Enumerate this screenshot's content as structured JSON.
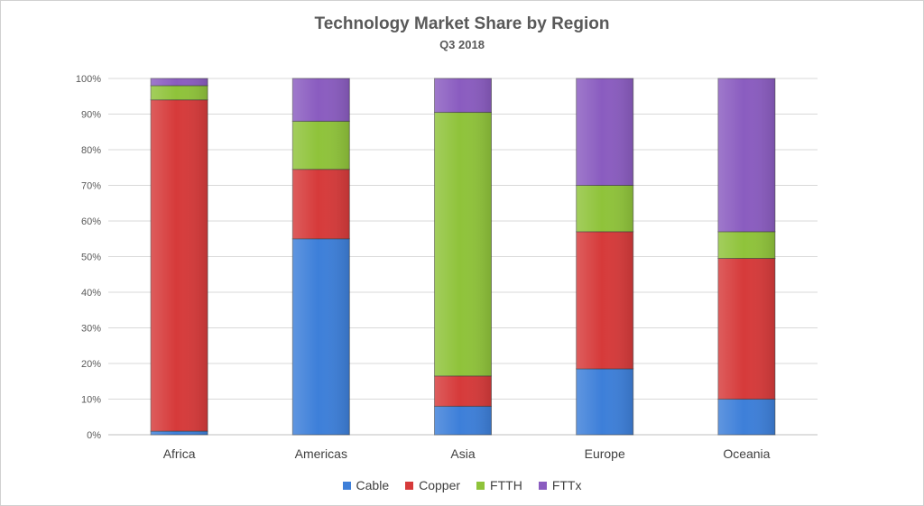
{
  "chart_data": {
    "type": "bar",
    "stacked": true,
    "title": "Technology Market Share by Region",
    "subtitle": "Q3 2018",
    "xlabel": "",
    "ylabel": "",
    "ylim": [
      0,
      100
    ],
    "y_ticks": [
      "0%",
      "10%",
      "20%",
      "30%",
      "40%",
      "50%",
      "60%",
      "70%",
      "80%",
      "90%",
      "100%"
    ],
    "grid": true,
    "legend_position": "bottom",
    "categories": [
      "Africa",
      "Americas",
      "Asia",
      "Europe",
      "Oceania"
    ],
    "series": [
      {
        "name": "Cable",
        "color": "#3d7fd9",
        "values": [
          1,
          55,
          8,
          18.5,
          10
        ]
      },
      {
        "name": "Copper",
        "color": "#d63a3a",
        "values": [
          93,
          19.5,
          8.5,
          38.5,
          39.5
        ]
      },
      {
        "name": "FTTH",
        "color": "#8fc33a",
        "values": [
          4,
          13.5,
          74,
          13,
          7.5
        ]
      },
      {
        "name": "FTTx",
        "color": "#8a5cc0",
        "values": [
          2,
          12,
          9.5,
          30,
          43
        ]
      }
    ]
  }
}
